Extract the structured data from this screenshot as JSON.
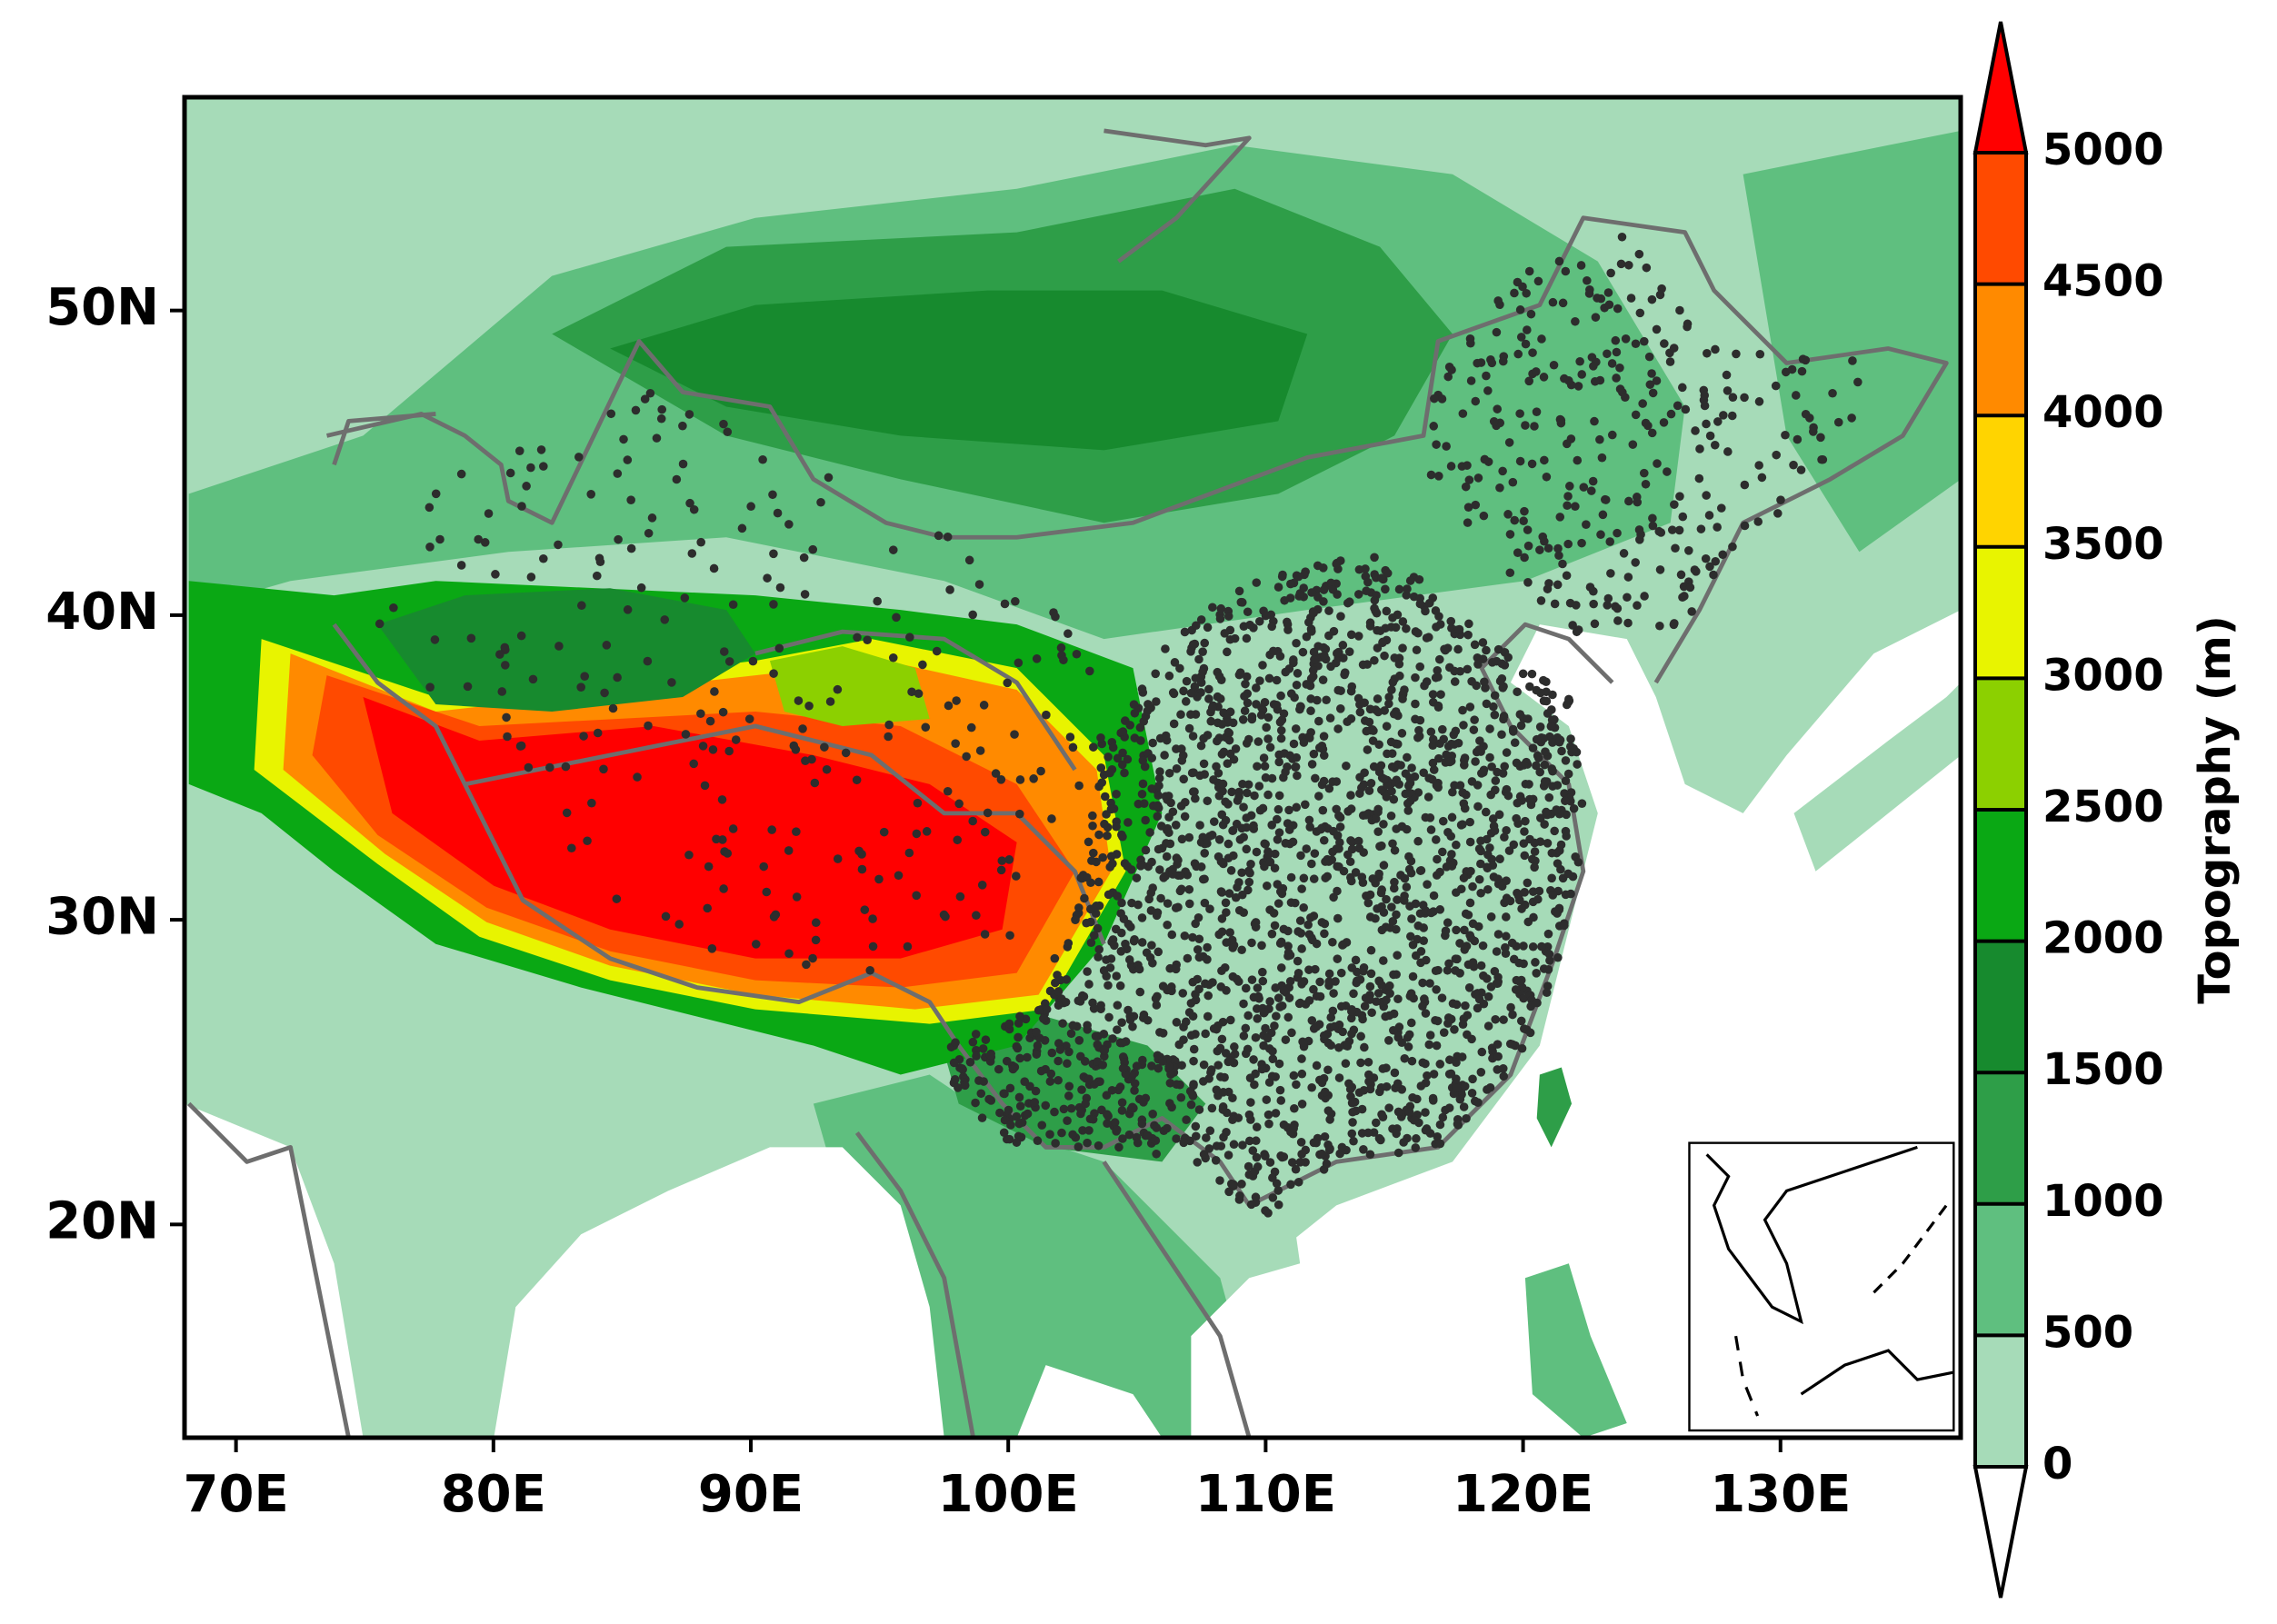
{
  "map": {
    "xlim": [
      68,
      137
    ],
    "ylim": [
      13,
      57
    ],
    "xticks": [
      {
        "value": 70,
        "label": "70E"
      },
      {
        "value": 80,
        "label": "80E"
      },
      {
        "value": 90,
        "label": "90E"
      },
      {
        "value": 100,
        "label": "100E"
      },
      {
        "value": 110,
        "label": "110E"
      },
      {
        "value": 120,
        "label": "120E"
      },
      {
        "value": 130,
        "label": "130E"
      }
    ],
    "yticks": [
      {
        "value": 20,
        "label": "20N"
      },
      {
        "value": 30,
        "label": "30N"
      },
      {
        "value": 40,
        "label": "40N"
      },
      {
        "value": 50,
        "label": "50N"
      }
    ],
    "colorbar": {
      "label": "Topography (m)",
      "levels": [
        0,
        500,
        1000,
        1500,
        2000,
        2500,
        3000,
        3500,
        4000,
        4500,
        5000
      ],
      "colors": [
        "#ffffff",
        "#a6dbb8",
        "#5fbf7f",
        "#2e9e48",
        "#178a2e",
        "#0aa814",
        "#8cd000",
        "#e8f400",
        "#ffd400",
        "#ff8a00",
        "#ff4a00",
        "#ff0000"
      ]
    }
  }
}
